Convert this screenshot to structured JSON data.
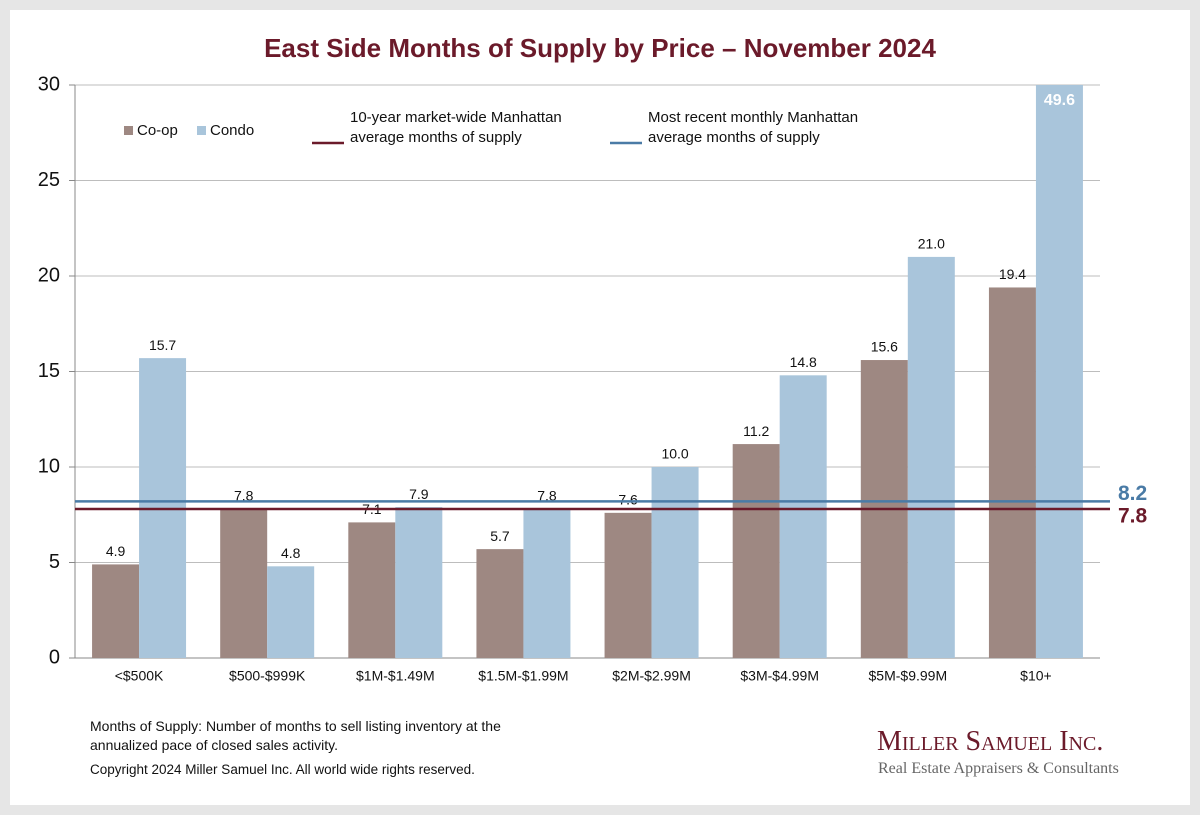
{
  "chart_data": {
    "type": "bar",
    "title": "East Side Months of Supply by Price – November 2024",
    "categories": [
      "<$500K",
      "$500-$999K",
      "$1M-$1.49M",
      "$1.5M-$1.99M",
      "$2M-$2.99M",
      "$3M-$4.99M",
      "$5M-$9.99M",
      "$10+"
    ],
    "series": [
      {
        "name": "Co-op",
        "color": "#9e8882",
        "values": [
          4.9,
          7.8,
          7.1,
          5.7,
          7.6,
          11.2,
          15.6,
          19.4
        ]
      },
      {
        "name": "Condo",
        "color": "#a9c5db",
        "values": [
          15.7,
          4.8,
          7.9,
          7.8,
          10.0,
          14.8,
          21.0,
          49.6
        ],
        "value_labels": [
          "15.7",
          "4.8",
          "7.9",
          "7.8",
          "10.0",
          "14.8",
          "21.0",
          "49.6"
        ]
      }
    ],
    "reference_lines": [
      {
        "name": "10-year market-wide Manhattan average months of supply",
        "value": 7.8,
        "label": "7.8",
        "color": "#6b1a2a"
      },
      {
        "name": "Most recent monthly Manhattan average months of supply",
        "value": 8.2,
        "label": "8.2",
        "color": "#4a7ba6"
      }
    ],
    "ylim": [
      0,
      30
    ],
    "yticks": [
      0,
      5,
      10,
      15,
      20,
      25,
      30
    ],
    "grid": true,
    "footnote": "Months of Supply: Number of months to sell listing inventory at the annualized pace of closed sales activity.",
    "copyright": "Copyright 2024 Miller Samuel Inc.  All world wide rights reserved."
  },
  "logo": {
    "name": "Miller Samuel Inc.",
    "tagline": "Real Estate Appraisers & Consultants"
  }
}
